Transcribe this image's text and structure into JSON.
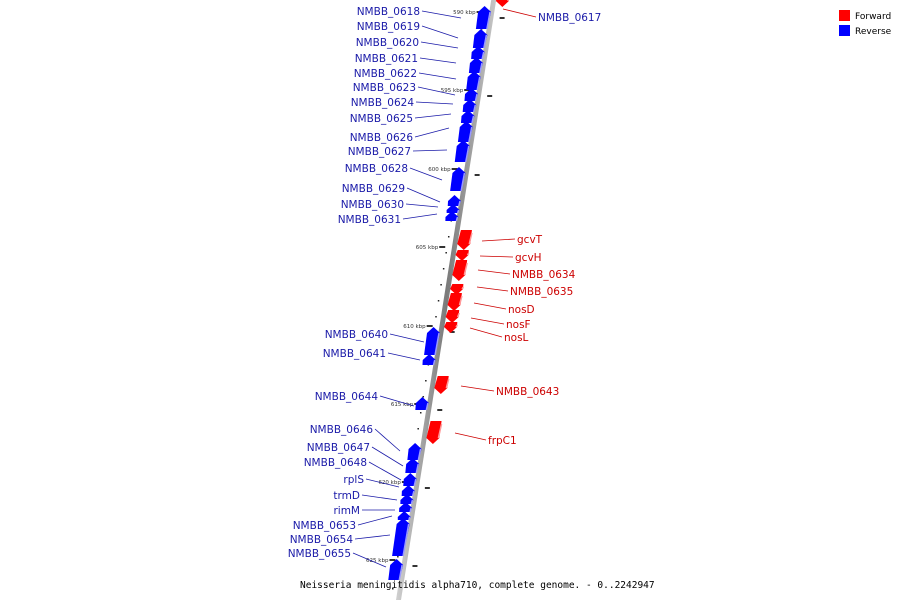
{
  "colors": {
    "forward": "#ff0000",
    "reverse": "#0000ff",
    "forward_text": "#cc0000",
    "reverse_text": "#1a1aa8",
    "backbone": "#888888"
  },
  "legend": [
    {
      "label": "Forward",
      "color": "#ff0000"
    },
    {
      "label": "Reverse",
      "color": "#0000ff"
    }
  ],
  "caption": "Neisseria meningitidis alpha710, complete genome. - 0..2242947",
  "ticks": [
    "590 kbp",
    "595 kbp",
    "600 kbp",
    "605 kbp",
    "610 kbp",
    "615 kbp",
    "620 kbp",
    "625 kbp"
  ],
  "genes_reverse": [
    "NMBB_0618",
    "NMBB_0619",
    "NMBB_0620",
    "NMBB_0621",
    "NMBB_0622",
    "NMBB_0623",
    "NMBB_0624",
    "NMBB_0625",
    "NMBB_0626",
    "NMBB_0627",
    "NMBB_0628",
    "NMBB_0629",
    "NMBB_0630",
    "NMBB_0631",
    "NMBB_0640",
    "NMBB_0641",
    "NMBB_0644",
    "NMBB_0646",
    "NMBB_0647",
    "NMBB_0648",
    "rplS",
    "trmD",
    "rimM",
    "NMBB_0653",
    "NMBB_0654",
    "NMBB_0655"
  ],
  "genes_forward": [
    "NMBB_0617",
    "gcvT",
    "gcvH",
    "NMBB_0634",
    "NMBB_0635",
    "nosD",
    "nosF",
    "nosL",
    "NMBB_0643",
    "frpC1"
  ]
}
